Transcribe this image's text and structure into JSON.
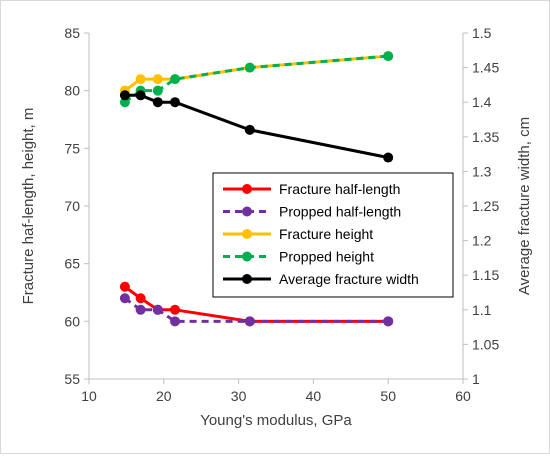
{
  "chart_data": {
    "type": "line",
    "xlabel": "Young's modulus, GPa",
    "ylabel_left": "Fracture haf-length, height, m",
    "ylabel_right": "Average fracture width, cm",
    "xlim": [
      10,
      60
    ],
    "ylim_left": [
      55,
      85
    ],
    "ylim_right": [
      1,
      1.5
    ],
    "x_ticks": [
      "10",
      "20",
      "30",
      "40",
      "50",
      "60"
    ],
    "y_left_ticks": [
      "55",
      "60",
      "65",
      "70",
      "75",
      "80",
      "85"
    ],
    "y_right_ticks": [
      "1",
      "1.05",
      "1.1",
      "1.15",
      "1.2",
      "1.25",
      "1.3",
      "1.35",
      "1.4",
      "1.45",
      "1.5"
    ],
    "grid": "none",
    "legend_position": "center-right",
    "series": [
      {
        "name": "Fracture half-length",
        "axis": "left",
        "color": "#ff0000",
        "dash": false,
        "x": [
          14.8,
          16.9,
          19.2,
          21.5,
          31.5,
          50
        ],
        "y": [
          63,
          62,
          61,
          61,
          60,
          60
        ]
      },
      {
        "name": "Propped half-length",
        "axis": "left",
        "color": "#7030a0",
        "dash": true,
        "x": [
          14.8,
          16.9,
          19.2,
          21.5,
          31.5,
          50
        ],
        "y": [
          62,
          61,
          61,
          60,
          60,
          60
        ]
      },
      {
        "name": "Fracture height",
        "axis": "left",
        "color": "#ffc000",
        "dash": false,
        "x": [
          14.8,
          16.9,
          19.2,
          21.5,
          31.5,
          50
        ],
        "y": [
          80,
          81,
          81,
          81,
          82,
          83
        ]
      },
      {
        "name": "Propped height",
        "axis": "left",
        "color": "#00b050",
        "dash": true,
        "x": [
          14.8,
          16.9,
          19.2,
          21.5,
          31.5,
          50
        ],
        "y": [
          79,
          80,
          80,
          81,
          82,
          83
        ]
      },
      {
        "name": "Average fracture width",
        "axis": "right",
        "color": "#000000",
        "dash": false,
        "x": [
          14.8,
          16.9,
          19.2,
          21.5,
          31.5,
          50
        ],
        "y": [
          1.41,
          1.41,
          1.4,
          1.4,
          1.36,
          1.32
        ]
      }
    ]
  }
}
